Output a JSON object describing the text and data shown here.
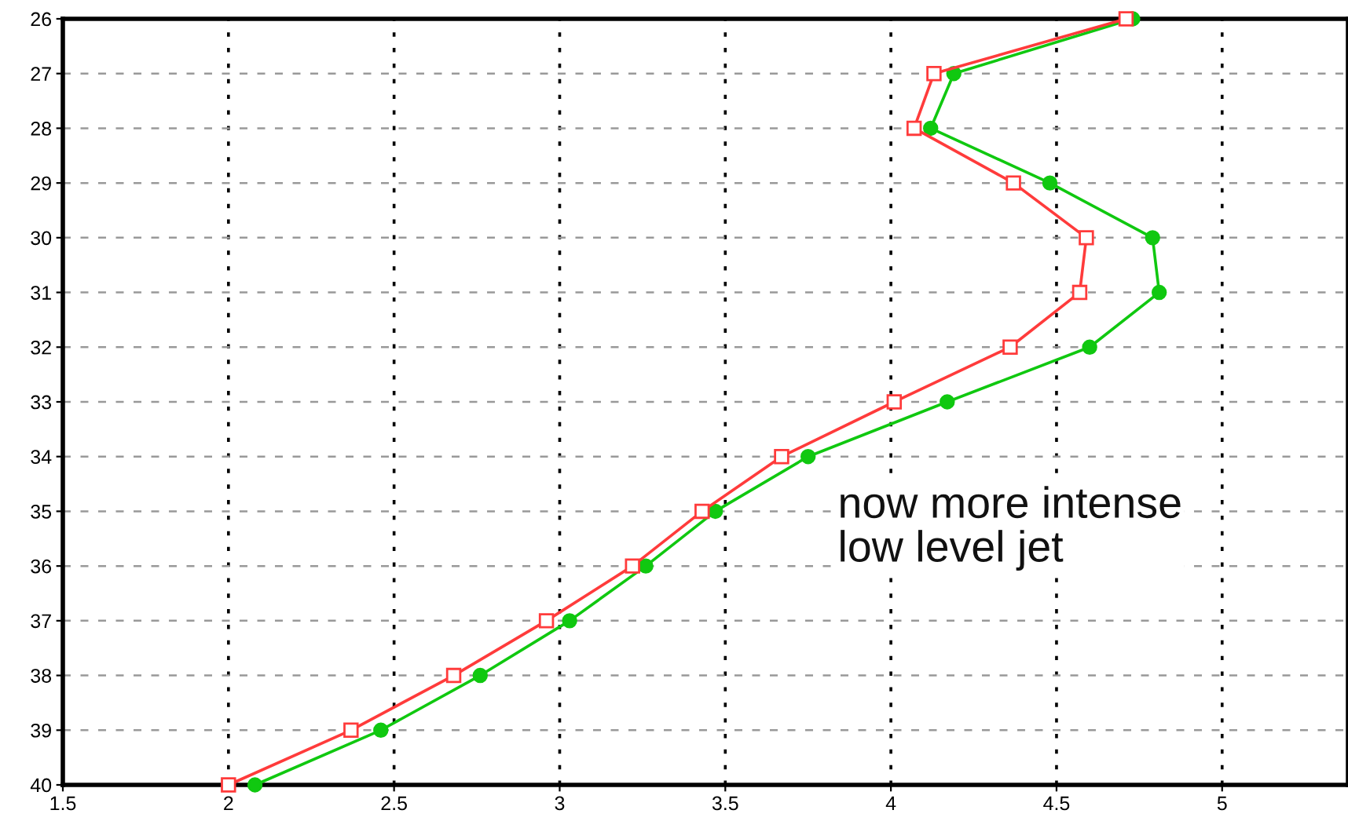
{
  "chart_data": {
    "type": "line",
    "x": [
      26,
      27,
      28,
      29,
      30,
      31,
      32,
      33,
      34,
      35,
      36,
      37,
      38,
      39,
      40
    ],
    "series": [
      {
        "color": "#ff3b3b",
        "marker": "square",
        "values": [
          4.71,
          4.13,
          4.07,
          4.37,
          4.59,
          4.57,
          4.36,
          4.01,
          3.67,
          3.43,
          3.22,
          2.96,
          2.68,
          2.37,
          2.0
        ]
      },
      {
        "color": "#10c810",
        "marker": "circle",
        "values": [
          4.73,
          4.19,
          4.12,
          4.48,
          4.79,
          4.81,
          4.6,
          4.17,
          3.75,
          3.47,
          3.26,
          3.03,
          2.76,
          2.46,
          2.08
        ]
      }
    ],
    "orientation": "horizontal",
    "xlim": [
      1.5,
      5.38
    ],
    "xticks": [
      1.5,
      2,
      2.5,
      3,
      3.5,
      4,
      4.5,
      5
    ],
    "ylim": [
      40,
      26
    ],
    "yticks": [
      26,
      27,
      28,
      29,
      30,
      31,
      32,
      33,
      34,
      35,
      36,
      37,
      38,
      39,
      40
    ],
    "grid": true,
    "annotations": [
      "now more intense\nlow level jet"
    ]
  }
}
